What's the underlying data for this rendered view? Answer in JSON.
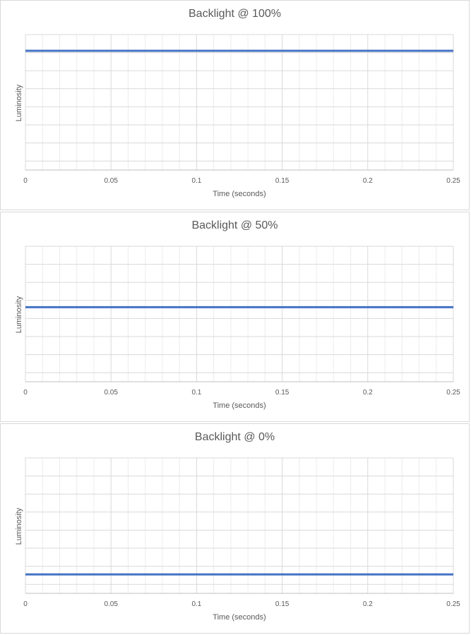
{
  "colors": {
    "series": "#4472c4",
    "grid_major": "#d9d9d9",
    "grid_minor": "#ececec",
    "text": "#595959"
  },
  "chart_data": [
    {
      "type": "line",
      "title": "Backlight @ 100%",
      "xlabel": "Time (seconds)",
      "ylabel": "Luminosity",
      "xlim": [
        0,
        0.25
      ],
      "ylim": [
        0,
        100
      ],
      "xticks": [
        "0",
        "0.05",
        "0.1",
        "0.15",
        "0.2",
        "0.25"
      ],
      "grid": true,
      "series": [
        {
          "x": [
            0,
            0.25
          ],
          "y": [
            88,
            88
          ]
        }
      ]
    },
    {
      "type": "line",
      "title": "Backlight @ 50%",
      "xlabel": "Time (seconds)",
      "ylabel": "Luminosity",
      "xlim": [
        0,
        0.25
      ],
      "ylim": [
        0,
        100
      ],
      "xticks": [
        "0",
        "0.05",
        "0.1",
        "0.15",
        "0.2",
        "0.25"
      ],
      "grid": true,
      "series": [
        {
          "x": [
            0,
            0.25
          ],
          "y": [
            55,
            55
          ]
        }
      ]
    },
    {
      "type": "line",
      "title": "Backlight @ 0%",
      "xlabel": "Time (seconds)",
      "ylabel": "Luminosity",
      "xlim": [
        0,
        0.25
      ],
      "ylim": [
        0,
        100
      ],
      "xticks": [
        "0",
        "0.05",
        "0.1",
        "0.15",
        "0.2",
        "0.25"
      ],
      "grid": true,
      "series": [
        {
          "x": [
            0,
            0.25
          ],
          "y": [
            14,
            14
          ]
        }
      ]
    }
  ]
}
